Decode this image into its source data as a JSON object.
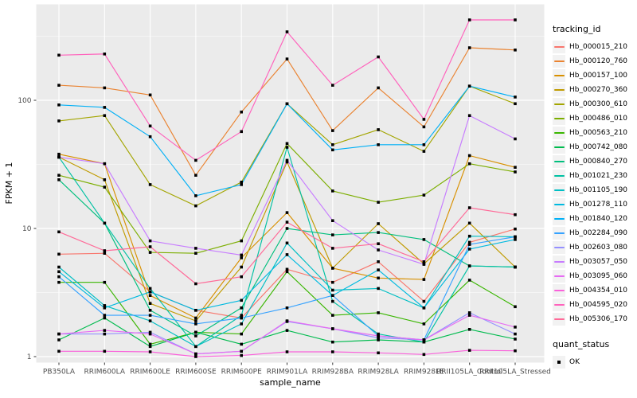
{
  "figure": {
    "y_axis": {
      "label": "FPKM + 1",
      "ticks": [
        {
          "value": 1,
          "label": "1"
        },
        {
          "value": 10,
          "label": "10"
        },
        {
          "value": 100,
          "label": "100"
        }
      ],
      "minor_breaks": [
        3.1623,
        31.623,
        316.23
      ]
    },
    "x_axis": {
      "label": "sample_name"
    },
    "legend": {
      "tracking_title": "tracking_id",
      "quant_title": "quant_status",
      "quant_items": [
        {
          "label": "OK"
        }
      ]
    },
    "colors": {
      "panel_background": "#EBEBEB",
      "gridline": "#FFFFFF",
      "tick_text": "#4D4D4D",
      "axis_title": "#000000",
      "point": "#000000",
      "legend_key_background": "#F2F2F2"
    }
  },
  "chart_data": {
    "type": "line",
    "title": "",
    "xlabel": "sample_name",
    "ylabel": "FPKM + 1",
    "yscale": "log10",
    "ylim": [
      1,
      560
    ],
    "grid": "on",
    "legend_position": "right",
    "point_shape": "filled-black-square",
    "quant_status": "OK",
    "categories": [
      "PB350LA",
      "RRIM600LA",
      "RRIM600LE",
      "RRIM600SE",
      "RRIM600PE",
      "RRIM901LA",
      "RRIM928BA",
      "RRIM928LA",
      "RRIM928LE",
      "RRII105LA_Control",
      "RRII105LA_Stressed"
    ],
    "series": [
      {
        "name": "Hb_000015_210",
        "color": "#F8766D",
        "values": [
          6.3,
          6.4,
          3.2,
          2.3,
          2.0,
          4.8,
          3.8,
          5.5,
          2.7,
          7.8,
          9.9
        ]
      },
      {
        "name": "Hb_000120_760",
        "color": "#EA8331",
        "values": [
          131,
          125,
          110,
          26,
          81,
          210,
          58,
          125,
          62,
          257,
          247
        ]
      },
      {
        "name": "Hb_000157_100",
        "color": "#D89000",
        "values": [
          38,
          32,
          3.0,
          2.0,
          5.9,
          13.3,
          4.9,
          4.1,
          4.0,
          37,
          30
        ]
      },
      {
        "name": "Hb_000270_360",
        "color": "#C09B00",
        "values": [
          36,
          24,
          2.6,
          1.9,
          5.0,
          33,
          4.9,
          10.9,
          5.3,
          11,
          5.0
        ]
      },
      {
        "name": "Hb_000300_610",
        "color": "#A3A500",
        "values": [
          69,
          76,
          22,
          15,
          23,
          94,
          45,
          59,
          40,
          129,
          94
        ]
      },
      {
        "name": "Hb_000486_010",
        "color": "#7CAE00",
        "values": [
          26,
          21,
          6.5,
          6.4,
          8.0,
          46,
          19.6,
          16,
          18.2,
          32,
          27.6
        ]
      },
      {
        "name": "Hb_000563_210",
        "color": "#39B600",
        "values": [
          3.8,
          3.8,
          1.25,
          1.55,
          1.5,
          4.6,
          2.1,
          2.2,
          1.8,
          3.95,
          2.45
        ]
      },
      {
        "name": "Hb_000742_080",
        "color": "#00BB4E",
        "values": [
          1.35,
          2.0,
          1.2,
          1.55,
          1.25,
          1.6,
          1.3,
          1.35,
          1.3,
          1.63,
          1.37
        ]
      },
      {
        "name": "Hb_000840_270",
        "color": "#00BF7D",
        "values": [
          24,
          11,
          2.3,
          1.45,
          2.4,
          10,
          8.9,
          9.3,
          8.2,
          5.1,
          5.0
        ]
      },
      {
        "name": "Hb_001021_230",
        "color": "#00C1A3",
        "values": [
          36,
          11,
          3.4,
          1.2,
          2.1,
          43,
          2.7,
          1.5,
          1.3,
          5.1,
          5.0
        ]
      },
      {
        "name": "Hb_001105_190",
        "color": "#00BFC4",
        "values": [
          5.0,
          2.5,
          1.9,
          1.2,
          1.8,
          7.7,
          3.3,
          3.4,
          2.4,
          8.7,
          8.6
        ]
      },
      {
        "name": "Hb_001278_110",
        "color": "#00BAE0",
        "values": [
          4.6,
          2.4,
          3.2,
          2.3,
          2.75,
          6.25,
          3.0,
          4.75,
          2.4,
          6.9,
          8.2
        ]
      },
      {
        "name": "Hb_001840_120",
        "color": "#00B0F6",
        "values": [
          92,
          88,
          52,
          18,
          22,
          94,
          41,
          45,
          45,
          129,
          106
        ]
      },
      {
        "name": "Hb_002284_090",
        "color": "#35A2FF",
        "values": [
          4.2,
          2.1,
          2.1,
          1.8,
          2.0,
          2.4,
          3.0,
          1.45,
          1.35,
          7.5,
          8.6
        ]
      },
      {
        "name": "Hb_002603_080",
        "color": "#9590FF",
        "values": [
          1.5,
          1.5,
          1.55,
          1.05,
          1.1,
          1.88,
          1.65,
          1.4,
          1.35,
          2.2,
          1.5
        ]
      },
      {
        "name": "Hb_003057_050",
        "color": "#C77CFF",
        "values": [
          36,
          32,
          8.0,
          7.0,
          6.2,
          34,
          11.5,
          6.8,
          5.25,
          76,
          50
        ]
      },
      {
        "name": "Hb_003095_060",
        "color": "#E76BF3",
        "values": [
          1.5,
          1.6,
          1.5,
          1.05,
          1.1,
          1.9,
          1.65,
          1.45,
          1.35,
          2.1,
          1.7
        ]
      },
      {
        "name": "Hb_004354_010",
        "color": "#FA62DB",
        "values": [
          1.1,
          1.1,
          1.09,
          1.0,
          1.02,
          1.09,
          1.09,
          1.07,
          1.04,
          1.12,
          1.11
        ]
      },
      {
        "name": "Hb_004595_020",
        "color": "#FF62BC",
        "values": [
          225,
          230,
          63,
          34,
          57,
          342,
          131,
          218,
          71,
          424,
          424
        ]
      },
      {
        "name": "Hb_005306_170",
        "color": "#FF6A98",
        "values": [
          9.4,
          6.7,
          7.2,
          3.7,
          4.2,
          11.2,
          7.0,
          7.6,
          5.5,
          14.5,
          12.8
        ]
      }
    ]
  }
}
